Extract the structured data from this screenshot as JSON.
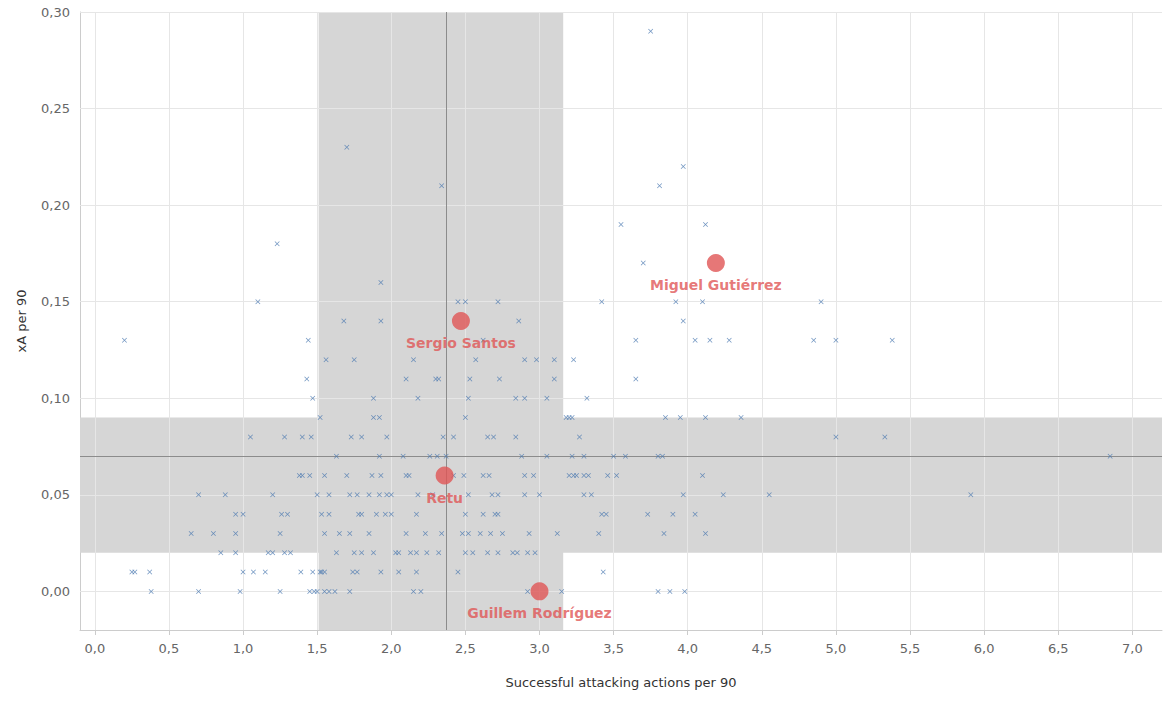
{
  "chart_data": {
    "type": "scatter",
    "x_label": "Successful attacking actions per 90",
    "y_label": "xA per 90",
    "xlim": [
      -0.1,
      7.2
    ],
    "ylim": [
      -0.02,
      0.3
    ],
    "xticks": [
      {
        "value": 0,
        "label": "0,0"
      },
      {
        "value": 0.5,
        "label": "0,5"
      },
      {
        "value": 1,
        "label": "1,0"
      },
      {
        "value": 1.5,
        "label": "1,5"
      },
      {
        "value": 2,
        "label": "2,0"
      },
      {
        "value": 2.5,
        "label": "2,5"
      },
      {
        "value": 3,
        "label": "3,0"
      },
      {
        "value": 3.5,
        "label": "3,5"
      },
      {
        "value": 4,
        "label": "4,0"
      },
      {
        "value": 4.5,
        "label": "4,5"
      },
      {
        "value": 5,
        "label": "5,0"
      },
      {
        "value": 5.5,
        "label": "5,5"
      },
      {
        "value": 6,
        "label": "6,0"
      },
      {
        "value": 6.5,
        "label": "6,5"
      },
      {
        "value": 7,
        "label": "7,0"
      }
    ],
    "yticks": [
      {
        "value": 0,
        "label": "0,00"
      },
      {
        "value": 0.05,
        "label": "0,05"
      },
      {
        "value": 0.1,
        "label": "0,10"
      },
      {
        "value": 0.15,
        "label": "0,15"
      },
      {
        "value": 0.2,
        "label": "0,20"
      },
      {
        "value": 0.25,
        "label": "0,25"
      },
      {
        "value": 0.3,
        "label": "0,30"
      }
    ],
    "grid": true,
    "bands": {
      "x": [
        1.51,
        3.16
      ],
      "y": [
        0.02,
        0.09
      ]
    },
    "reference_lines": {
      "x": 2.37,
      "y": 0.065
    },
    "points": {
      "color": "#4a78b0",
      "marker": "x",
      "x": [
        3.75,
        1.7,
        3.97,
        2.34,
        3.81,
        1.23,
        3.55,
        4.12,
        3.7,
        1.1,
        2.45,
        2.5,
        2.72,
        3.42,
        3.92,
        4.1,
        4.9,
        1.93,
        0.2,
        1.44,
        3.65,
        4.05,
        4.15,
        4.28,
        4.85,
        5.0,
        5.38,
        2.62,
        1.68,
        1.93,
        2.86,
        3.97,
        1.56,
        1.75,
        2.15,
        2.57,
        2.9,
        2.98,
        3.1,
        3.23,
        1.43,
        2.1,
        2.3,
        2.32,
        2.53,
        2.73,
        3.1,
        3.65,
        1.47,
        1.88,
        2.18,
        2.52,
        2.84,
        2.9,
        3.05,
        3.32,
        1.52,
        1.88,
        1.92,
        2.5,
        3.18,
        3.2,
        3.22,
        3.85,
        3.95,
        4.12,
        4.36,
        1.05,
        1.28,
        1.4,
        1.46,
        1.73,
        1.8,
        1.97,
        2.35,
        2.42,
        2.65,
        2.69,
        2.84,
        3.27,
        5.0,
        5.33,
        1.63,
        1.92,
        2.08,
        2.26,
        2.31,
        2.37,
        2.88,
        3.05,
        3.22,
        3.3,
        3.5,
        3.58,
        3.8,
        3.83,
        6.85,
        1.38,
        1.4,
        1.45,
        1.55,
        1.7,
        1.87,
        1.93,
        2.1,
        2.12,
        2.42,
        2.49,
        2.62,
        2.66,
        2.9,
        2.96,
        3.2,
        3.23,
        3.25,
        3.3,
        3.33,
        3.46,
        3.52,
        4.1,
        0.7,
        0.88,
        1.2,
        1.5,
        1.58,
        1.72,
        1.77,
        1.85,
        1.92,
        1.97,
        2.0,
        2.18,
        2.28,
        2.52,
        2.68,
        2.72,
        2.9,
        3.0,
        3.3,
        3.35,
        3.97,
        4.24,
        4.55,
        5.91,
        0.95,
        1.0,
        1.26,
        1.3,
        1.53,
        1.58,
        1.78,
        1.8,
        1.9,
        1.96,
        2.0,
        2.17,
        2.5,
        2.62,
        2.7,
        2.72,
        3.42,
        3.45,
        3.73,
        3.9,
        4.05,
        0.65,
        0.8,
        0.95,
        1.25,
        1.55,
        1.65,
        1.72,
        1.85,
        2.1,
        2.23,
        2.34,
        2.48,
        2.52,
        2.6,
        2.67,
        2.75,
        2.93,
        3.12,
        3.4,
        3.84,
        4.12,
        0.85,
        0.95,
        1.17,
        1.2,
        1.28,
        1.32,
        1.63,
        1.75,
        1.8,
        1.88,
        2.03,
        2.05,
        2.13,
        2.17,
        2.24,
        2.32,
        2.5,
        2.55,
        2.65,
        2.72,
        2.82,
        2.85,
        2.92,
        2.97,
        0.25,
        0.27,
        0.37,
        1.0,
        1.07,
        1.15,
        1.39,
        1.47,
        1.52,
        1.53,
        1.55,
        1.74,
        1.77,
        1.93,
        2.05,
        2.17,
        2.45,
        3.43,
        0.38,
        0.7,
        0.98,
        1.25,
        1.45,
        1.48,
        1.5,
        1.55,
        1.58,
        1.62,
        1.72,
        2.15,
        2.2,
        2.92,
        3.15,
        3.8,
        3.88,
        3.98
      ],
      "y": [
        0.29,
        0.23,
        0.22,
        0.21,
        0.21,
        0.18,
        0.19,
        0.19,
        0.17,
        0.15,
        0.15,
        0.15,
        0.15,
        0.15,
        0.15,
        0.15,
        0.15,
        0.16,
        0.13,
        0.13,
        0.13,
        0.13,
        0.13,
        0.13,
        0.13,
        0.13,
        0.13,
        0.13,
        0.14,
        0.14,
        0.14,
        0.14,
        0.12,
        0.12,
        0.12,
        0.12,
        0.12,
        0.12,
        0.12,
        0.12,
        0.11,
        0.11,
        0.11,
        0.11,
        0.11,
        0.11,
        0.11,
        0.11,
        0.1,
        0.1,
        0.1,
        0.1,
        0.1,
        0.1,
        0.1,
        0.1,
        0.09,
        0.09,
        0.09,
        0.09,
        0.09,
        0.09,
        0.09,
        0.09,
        0.09,
        0.09,
        0.09,
        0.08,
        0.08,
        0.08,
        0.08,
        0.08,
        0.08,
        0.08,
        0.08,
        0.08,
        0.08,
        0.08,
        0.08,
        0.08,
        0.08,
        0.08,
        0.07,
        0.07,
        0.07,
        0.07,
        0.07,
        0.07,
        0.07,
        0.07,
        0.07,
        0.07,
        0.07,
        0.07,
        0.07,
        0.07,
        0.07,
        0.06,
        0.06,
        0.06,
        0.06,
        0.06,
        0.06,
        0.06,
        0.06,
        0.06,
        0.06,
        0.06,
        0.06,
        0.06,
        0.06,
        0.06,
        0.06,
        0.06,
        0.06,
        0.06,
        0.06,
        0.06,
        0.06,
        0.06,
        0.05,
        0.05,
        0.05,
        0.05,
        0.05,
        0.05,
        0.05,
        0.05,
        0.05,
        0.05,
        0.05,
        0.05,
        0.05,
        0.05,
        0.05,
        0.05,
        0.05,
        0.05,
        0.05,
        0.05,
        0.05,
        0.05,
        0.05,
        0.05,
        0.04,
        0.04,
        0.04,
        0.04,
        0.04,
        0.04,
        0.04,
        0.04,
        0.04,
        0.04,
        0.04,
        0.04,
        0.04,
        0.04,
        0.04,
        0.04,
        0.04,
        0.04,
        0.04,
        0.04,
        0.04,
        0.03,
        0.03,
        0.03,
        0.03,
        0.03,
        0.03,
        0.03,
        0.03,
        0.03,
        0.03,
        0.03,
        0.03,
        0.03,
        0.03,
        0.03,
        0.03,
        0.03,
        0.03,
        0.03,
        0.03,
        0.03,
        0.02,
        0.02,
        0.02,
        0.02,
        0.02,
        0.02,
        0.02,
        0.02,
        0.02,
        0.02,
        0.02,
        0.02,
        0.02,
        0.02,
        0.02,
        0.02,
        0.02,
        0.02,
        0.02,
        0.02,
        0.02,
        0.02,
        0.02,
        0.02,
        0.01,
        0.01,
        0.01,
        0.01,
        0.01,
        0.01,
        0.01,
        0.01,
        0.01,
        0.01,
        0.01,
        0.01,
        0.01,
        0.01,
        0.01,
        0.01,
        0.01,
        0.01,
        0,
        0,
        0,
        0,
        0,
        0,
        0,
        0,
        0,
        0,
        0,
        0,
        0,
        0,
        0,
        0,
        0,
        0
      ]
    },
    "highlighted": {
      "color": "#e05555",
      "marker": "circle",
      "labels": [
        "Miguel Gutiérrez",
        "Sergio Santos",
        "Retu",
        "Guillem Rodríguez"
      ],
      "x": [
        4.19,
        2.47,
        2.36,
        3.0
      ],
      "y": [
        0.17,
        0.14,
        0.06,
        0.0
      ]
    }
  }
}
